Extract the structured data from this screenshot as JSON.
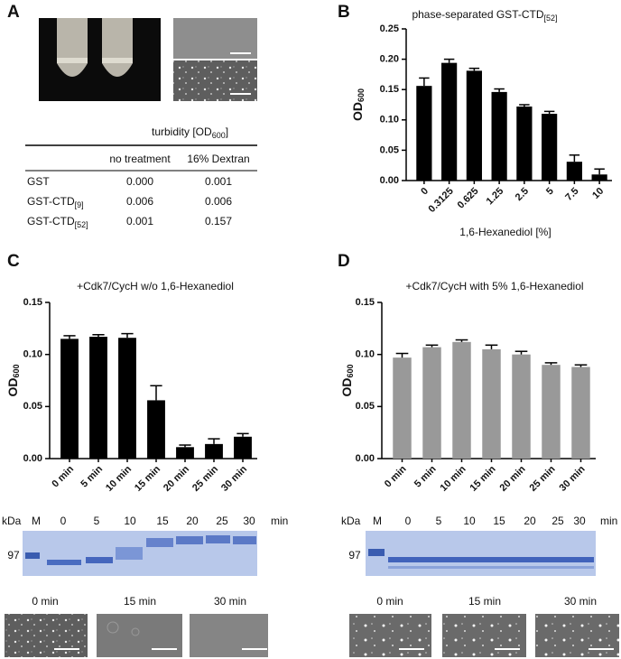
{
  "panels": [
    "A",
    "B",
    "C",
    "D"
  ],
  "table": {
    "header": {
      "text": "turbidity   [OD",
      "sub": "600",
      "end": "]"
    },
    "columns": [
      "no treatment",
      "16% Dextran"
    ],
    "rows": [
      {
        "name": "GST",
        "values": [
          "0.000",
          "0.001"
        ]
      },
      {
        "name": "GST-CTD",
        "sub": "[9]",
        "values": [
          "0.006",
          "0.006"
        ]
      },
      {
        "name": "GST-CTD",
        "sub": "[52]",
        "values": [
          "0.001",
          "0.157"
        ]
      }
    ]
  },
  "gel_c": {
    "unit": "kDa",
    "marker": "M",
    "lanes": [
      "0",
      "5",
      "10",
      "15",
      "20",
      "25",
      "30"
    ],
    "lane_unit": "min",
    "size": "97"
  },
  "gel_d": {
    "unit": "kDa",
    "marker": "M",
    "lanes": [
      "0",
      "5",
      "10",
      "15",
      "20",
      "25",
      "30"
    ],
    "lane_unit": "min",
    "size": "97"
  },
  "micrographs_c": [
    "0 min",
    "15 min",
    "30 min"
  ],
  "micrographs_d": [
    "0 min",
    "15 min",
    "30 min"
  ],
  "chart_data": [
    {
      "type": "bar",
      "title": "phase-separated GST-CTD",
      "title_sub": "[52]",
      "ylabel": "OD",
      "ylabel_sub": "600",
      "xlabel": "1,6-Hexanediol  [%]",
      "categories": [
        "0",
        "0.3125",
        "0.625",
        "1.25",
        "2.5",
        "5",
        "7.5",
        "10"
      ],
      "values": [
        0.156,
        0.194,
        0.181,
        0.146,
        0.122,
        0.11,
        0.031,
        0.01
      ],
      "errors": [
        0.013,
        0.006,
        0.004,
        0.005,
        0.003,
        0.004,
        0.011,
        0.009
      ],
      "color": "#000000",
      "ylim": [
        0,
        0.25
      ],
      "yticks": [
        {
          "value": 0,
          "label": "0.00"
        },
        {
          "value": 0.05,
          "label": "0.05"
        },
        {
          "value": 0.1,
          "label": "0.10"
        },
        {
          "value": 0.15,
          "label": "0.15"
        },
        {
          "value": 0.2,
          "label": "0.20"
        },
        {
          "value": 0.25,
          "label": "0.25"
        }
      ]
    },
    {
      "type": "bar",
      "title": "+Cdk7/CycH  w/o 1,6-Hexanediol",
      "ylabel": "OD",
      "ylabel_sub": "600",
      "categories": [
        "0 min",
        "5 min",
        "10 min",
        "15 min",
        "20 min",
        "25 min",
        "30 min"
      ],
      "values": [
        0.115,
        0.117,
        0.116,
        0.056,
        0.011,
        0.014,
        0.021
      ],
      "errors": [
        0.003,
        0.002,
        0.004,
        0.014,
        0.002,
        0.005,
        0.003
      ],
      "color": "#000000",
      "ylim": [
        0,
        0.15
      ],
      "yticks": [
        {
          "value": 0,
          "label": "0.00"
        },
        {
          "value": 0.05,
          "label": "0.05"
        },
        {
          "value": 0.1,
          "label": "0.10"
        },
        {
          "value": 0.15,
          "label": "0.15"
        }
      ]
    },
    {
      "type": "bar",
      "title": "+Cdk7/CycH  with 5% 1,6-Hexanediol",
      "ylabel": "OD",
      "ylabel_sub": "600",
      "categories": [
        "0 min",
        "5 min",
        "10 min",
        "15 min",
        "20 min",
        "25 min",
        "30 min"
      ],
      "values": [
        0.097,
        0.107,
        0.112,
        0.105,
        0.1,
        0.09,
        0.088
      ],
      "errors": [
        0.004,
        0.002,
        0.002,
        0.004,
        0.003,
        0.002,
        0.002
      ],
      "color": "#999999",
      "ylim": [
        0,
        0.15
      ],
      "yticks": [
        {
          "value": 0,
          "label": "0.00"
        },
        {
          "value": 0.05,
          "label": "0.05"
        },
        {
          "value": 0.1,
          "label": "0.10"
        },
        {
          "value": 0.15,
          "label": "0.15"
        }
      ]
    }
  ]
}
